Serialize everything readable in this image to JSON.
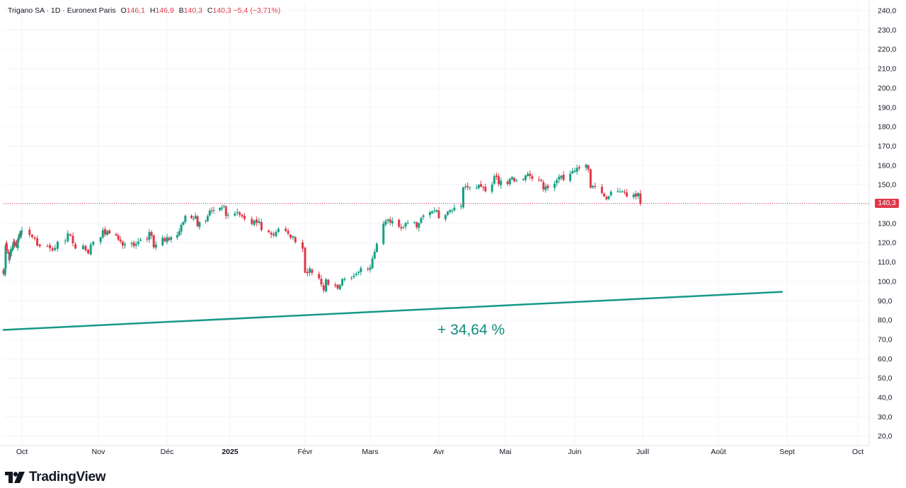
{
  "legend": {
    "symbol": "Trigano SA",
    "sep1": "·",
    "interval": "1D",
    "sep2": "·",
    "exchange": "Euronext Paris",
    "open_label": "O",
    "open_value": "146,1",
    "high_label": "H",
    "high_value": "146,9",
    "low_label": "B",
    "low_value": "140,3",
    "close_label": "C",
    "close_value": "140,3",
    "change": "−5,4 (−3,71%)"
  },
  "last_price_label": "140,3",
  "annotation": "+ 34,64 %",
  "logo_text": "TradingView",
  "colors": {
    "up": "#16a085",
    "down": "#e0394a",
    "trendline": "#179886",
    "grid": "#f0f3fa",
    "axis_text": "#131722"
  },
  "chart_data": {
    "type": "candlestick",
    "title": "Trigano SA · 1D · Euronext Paris",
    "x_ticks": [
      "Oct",
      "Nov",
      "Déc",
      "2025",
      "Févr",
      "Mars",
      "Avr",
      "Mai",
      "Juin",
      "Juill",
      "Août",
      "Sept",
      "Oct"
    ],
    "y_ticks": [
      "240,0",
      "230,0",
      "220,0",
      "210,0",
      "200,0",
      "190,0",
      "180,0",
      "170,0",
      "160,0",
      "150,0",
      "140,0",
      "130,0",
      "120,0",
      "110,0",
      "100,0",
      "90,0",
      "80,0",
      "70,0",
      "60,0",
      "50,0",
      "40,0",
      "30,0",
      "20,0"
    ],
    "y_range": [
      16,
      243
    ],
    "grid": true,
    "last_price": 140.3,
    "series": [
      {
        "start": "2024-09-27",
        "close": [
          103.9,
          106.6,
          118.4,
          119.4,
          116.5,
          115.7,
          114.2,
          111.0,
          114.1,
          113.2,
          116.7,
          117.0,
          119.1,
          120.6,
          120.6,
          118.5,
          119.9,
          119.0,
          117.8,
          119.9,
          122.5,
          124.9,
          125.5,
          124.4,
          125.7,
          126.3,
          124.1,
          122.9,
          122.1,
          118.6,
          118.2,
          118.2,
          117.1,
          115.9,
          117.4,
          120.5,
          121.0,
          124.9,
          123.6,
          119.7,
          117.0,
          118.5,
          116.0,
          114.5,
          119.1,
          120.5,
          122.8,
          126.5,
          124.3,
          126.0,
          124.8,
          123.7,
          121.6,
          120.7,
          118.5,
          119.3,
          119.7,
          118.3,
          119.3,
          120.6,
          121.6,
          121.7,
          125.5,
          123.6,
          117.6,
          119.1,
          122.6,
          120.9,
          122.9,
          121.4,
          122.9,
          123.9,
          125.9,
          129.2,
          130.7,
          133.9,
          132.7,
          132.5,
          133.8,
          128.7,
          130.7,
          131.5,
          133.8,
          136.6,
          136.7,
          136.9,
          138.0,
          138.2,
          139.0,
          133.9,
          134.3,
          135.1,
          135.9,
          134.4,
          133.5,
          132.3,
          129.7,
          131.5,
          130.3,
          131.2,
          126.6,
          125.4,
          124.2,
          123.9,
          125.6,
          127.2,
          126.1,
          124.7,
          122.7,
          123.4,
          120.3,
          117.0,
          104.5,
          104.2,
          106.7,
          104.4,
          101.6,
          98.4,
          95.4,
          101.1,
          98.3,
          97.7,
          96.4,
          98.2,
          101.2,
          101.3,
          101.8,
          103.0,
          104.0,
          104.9,
          106.9,
          106.3,
          107.2,
          111.9,
          115.3,
          119.5,
          129.9,
          131.3,
          132.1,
          130.5,
          131.3,
          128.3,
          127.5,
          128.0,
          130.2,
          130.4,
          130.7,
          128.0,
          130.2,
          132.8,
          134.1,
          135.7,
          136.2,
          136.7,
          136.9,
          132.7,
          134.3,
          136.0,
          136.9,
          136.5,
          138.1,
          138.9,
          148.6,
          149.1,
          148.7,
          148.6,
          148.4,
          149.8,
          149.0,
          148.4,
          146.6,
          150.1,
          154.4,
          154.1,
          150.3,
          152.1,
          150.4,
          153.1,
          153.9,
          151.8,
          152.2,
          152.9,
          154.7,
          155.6,
          154.5,
          153.1,
          152.6,
          151.8,
          147.6,
          149.1,
          148.3,
          150.5,
          152.4,
          154.1,
          154.6,
          152.5,
          155.7,
          157.0,
          157.2,
          158.7,
          158.5,
          160.4,
          157.8,
          148.5,
          149.4,
          148.9,
          145.7,
          144.0,
          142.5,
          144.0,
          146.4,
          146.7,
          146.3,
          146.8,
          146.1,
          143.9,
          145.0,
          143.8,
          145.7,
          140.3
        ]
      }
    ],
    "trendline": {
      "from": {
        "x": "2024-10-01",
        "y": 74.9
      },
      "to": {
        "x": "2025-09-30",
        "y": 94.6
      },
      "label": "+ 34,64 %"
    }
  }
}
